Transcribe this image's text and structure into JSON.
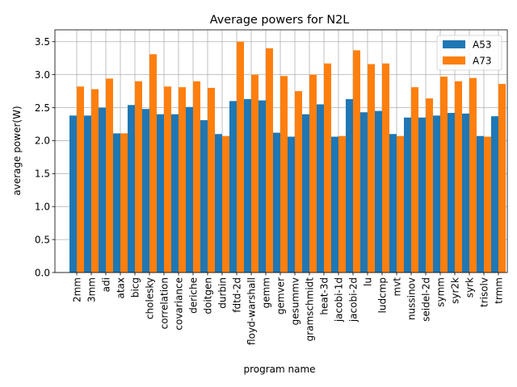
{
  "chart_data": {
    "type": "bar",
    "title": "Average powers for N2L",
    "xlabel": "program name",
    "ylabel": "average power(W)",
    "ylim": [
      0,
      3.68
    ],
    "yticks": [
      0.0,
      0.5,
      1.0,
      1.5,
      2.0,
      2.5,
      3.0,
      3.5
    ],
    "ytick_labels": [
      "0.0",
      "0.5",
      "1.0",
      "1.5",
      "2.0",
      "2.5",
      "3.0",
      "3.5"
    ],
    "grid": true,
    "legend_position": "top-right",
    "categories": [
      "2mm",
      "3mm",
      "adi",
      "atax",
      "bicg",
      "cholesky",
      "correlation",
      "covariance",
      "deriche",
      "doitgen",
      "durbin",
      "fdtd-2d",
      "floyd-warshall",
      "gemm",
      "gemver",
      "gesummv",
      "gramschmidt",
      "heat-3d",
      "jacobi-1d",
      "jacobi-2d",
      "lu",
      "ludcmp",
      "mvt",
      "nussinov",
      "seidel-2d",
      "symm",
      "syr2k",
      "syrk",
      "trisolv",
      "trmm"
    ],
    "series": [
      {
        "name": "A53",
        "color": "#1f77b4",
        "values": [
          2.38,
          2.38,
          2.5,
          2.11,
          2.54,
          2.48,
          2.4,
          2.4,
          2.51,
          2.31,
          2.1,
          2.6,
          2.63,
          2.61,
          2.12,
          2.06,
          2.4,
          2.55,
          2.06,
          2.63,
          2.43,
          2.45,
          2.1,
          2.35,
          2.35,
          2.38,
          2.42,
          2.41,
          2.07,
          2.37
        ]
      },
      {
        "name": "A73",
        "color": "#ff7f0e",
        "values": [
          2.82,
          2.78,
          2.94,
          2.11,
          2.9,
          3.31,
          2.82,
          2.81,
          2.9,
          2.8,
          2.07,
          3.5,
          3.0,
          3.4,
          2.98,
          2.75,
          3.0,
          3.17,
          2.07,
          3.37,
          3.16,
          3.17,
          2.07,
          2.81,
          2.64,
          2.97,
          2.9,
          2.95,
          2.06,
          2.86
        ]
      }
    ]
  }
}
